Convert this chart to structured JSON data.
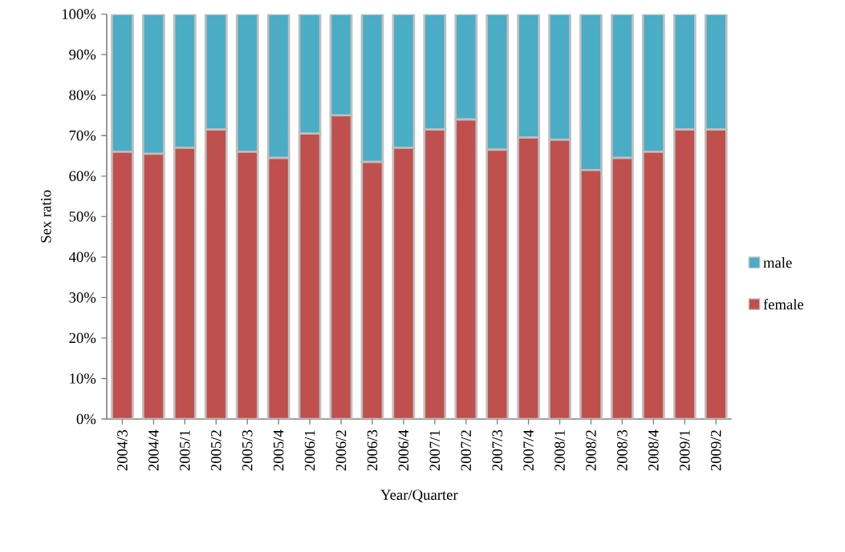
{
  "chart_data": {
    "type": "bar",
    "stacked": true,
    "xlabel": "Year/Quarter",
    "ylabel": "Sex ratio",
    "categories": [
      "2004/3",
      "2004/4",
      "2005/1",
      "2005/2",
      "2005/3",
      "2005/4",
      "2006/1",
      "2006/2",
      "2006/3",
      "2006/4",
      "2007/1",
      "2007/2",
      "2007/3",
      "2007/4",
      "2008/1",
      "2008/2",
      "2008/3",
      "2008/4",
      "2009/1",
      "2009/2"
    ],
    "series": [
      {
        "name": "female",
        "color": "#c0504d",
        "values": [
          66,
          65.5,
          67,
          71.5,
          66,
          64.5,
          70.5,
          75,
          63.5,
          67,
          71.5,
          74,
          66.5,
          69.5,
          69,
          61.5,
          64.5,
          66,
          71.5,
          71.5
        ]
      },
      {
        "name": "male",
        "color": "#4bacc6",
        "values": [
          34,
          34.5,
          33,
          28.5,
          34,
          35.5,
          29.5,
          25,
          36.5,
          33,
          28.5,
          26,
          33.5,
          30.5,
          31,
          38.5,
          35.5,
          34,
          28.5,
          28.5
        ]
      }
    ],
    "ylim": [
      0,
      100
    ],
    "yticks": [
      {
        "value": 0,
        "label": "0%"
      },
      {
        "value": 10,
        "label": "10%"
      },
      {
        "value": 20,
        "label": "20%"
      },
      {
        "value": 30,
        "label": "30%"
      },
      {
        "value": 40,
        "label": "40%"
      },
      {
        "value": 50,
        "label": "50%"
      },
      {
        "value": 60,
        "label": "60%"
      },
      {
        "value": 70,
        "label": "70%"
      },
      {
        "value": 80,
        "label": "80%"
      },
      {
        "value": 90,
        "label": "90%"
      },
      {
        "value": 100,
        "label": "100%"
      }
    ],
    "grid": false,
    "legend": "right"
  }
}
